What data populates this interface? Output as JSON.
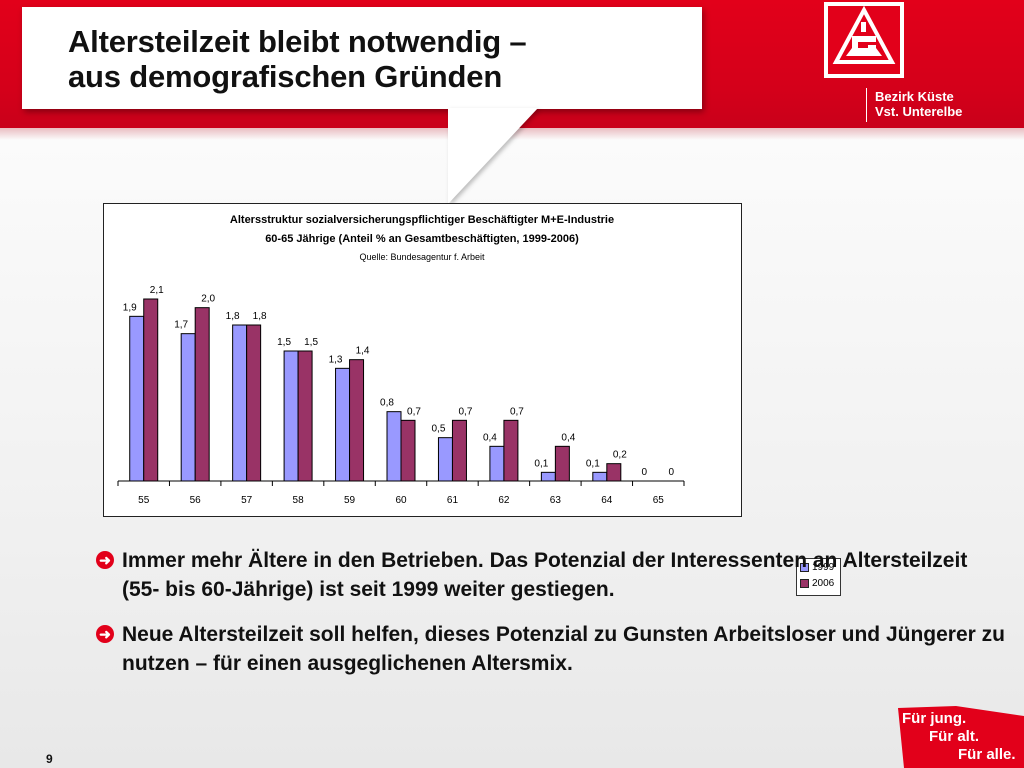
{
  "header": {
    "title": "Altersteilzeit bleibt notwendig –\naus demografischen Gründen",
    "org_text": "Bezirk Küste\nVst. Unterelbe",
    "logo_name": "ig-metall-logo"
  },
  "colors": {
    "brand_red": "#e2001a",
    "series_1999": "#9999ff",
    "series_2006": "#993366"
  },
  "chart_data": {
    "type": "bar",
    "title": "Altersstruktur sozialversicherungspflichtiger Beschäftigter M+E-Industrie",
    "subtitle": "60-65 Jährige (Anteil % an Gesamtbeschäftigten, 1999-2006)",
    "source": "Quelle: Bundesagentur f. Arbeit",
    "categories": [
      "55",
      "56",
      "57",
      "58",
      "59",
      "60",
      "61",
      "62",
      "63",
      "64",
      "65"
    ],
    "series": [
      {
        "name": "1999",
        "color": "#9999ff",
        "values": [
          1.9,
          1.7,
          1.8,
          1.5,
          1.3,
          0.8,
          0.5,
          0.4,
          0.1,
          0.1,
          0
        ],
        "labels": [
          "1,9",
          "1,7",
          "1,8",
          "1,5",
          "1,3",
          "0,8",
          "0,5",
          "0,4",
          "0,1",
          "0,1",
          "0"
        ]
      },
      {
        "name": "2006",
        "color": "#993366",
        "values": [
          2.1,
          2.0,
          1.8,
          1.5,
          1.4,
          0.7,
          0.7,
          0.7,
          0.4,
          0.2,
          0
        ],
        "labels": [
          "2,1",
          "2,0",
          "1,8",
          "1,5",
          "1,4",
          "0,7",
          "0,7",
          "0,7",
          "0,4",
          "0,2",
          "0"
        ]
      }
    ],
    "ylim": [
      0,
      2.1
    ],
    "grid": false,
    "legend_position": "right"
  },
  "bullets": [
    {
      "text": "Immer mehr Ältere in den Betrieben. Das Potenzial der Interessenten an Altersteilzeit (55- bis 60-Jährige) ist seit 1999 weiter gestiegen."
    },
    {
      "text": "Neue Altersteilzeit soll helfen, dieses Potenzial zu Gunsten Arbeitsloser und Jüngerer zu nutzen – für einen ausgeglichenen Altersmix."
    }
  ],
  "footer": {
    "slogan": [
      "Für jung.",
      "Für alt.",
      "Für alle."
    ],
    "page_number": "9"
  }
}
